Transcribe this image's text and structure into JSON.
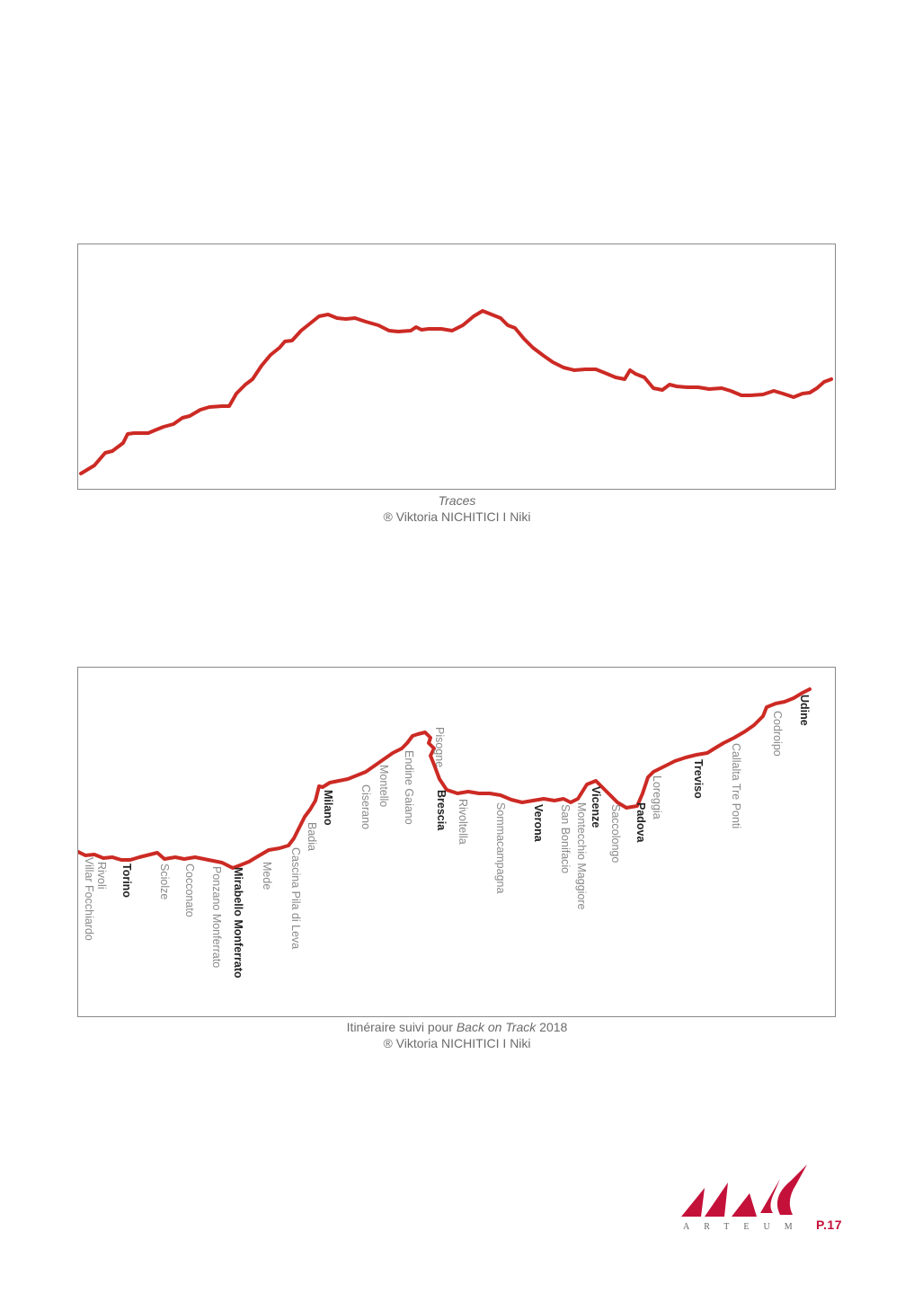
{
  "figure1": {
    "caption_title": "Traces",
    "caption_credit": "® Viktoria NICHITICI I Niki"
  },
  "figure2": {
    "caption_prefix": "Itinéraire suivi pour ",
    "caption_italic": "Back on Track",
    "caption_suffix": " 2018",
    "caption_credit": "® Viktoria NICHITICI I Niki",
    "towns": [
      {
        "name": "Villar Focchiardo",
        "major": false
      },
      {
        "name": "Rivoli",
        "major": false
      },
      {
        "name": "Torino",
        "major": true
      },
      {
        "name": "Sciolze",
        "major": false
      },
      {
        "name": "Cocconato",
        "major": false
      },
      {
        "name": "Ponzano Monferrato",
        "major": false
      },
      {
        "name": "Mirabello Monferrato",
        "major": true
      },
      {
        "name": "Mede",
        "major": false
      },
      {
        "name": "Cascina Pila di Leva",
        "major": false
      },
      {
        "name": "Badia",
        "major": false
      },
      {
        "name": "Milano",
        "major": true
      },
      {
        "name": "Ciserano",
        "major": false
      },
      {
        "name": "Montello",
        "major": false
      },
      {
        "name": "Endine Gaiano",
        "major": false
      },
      {
        "name": "Pisogne",
        "major": false
      },
      {
        "name": "Brescia",
        "major": true
      },
      {
        "name": "Rivoltella",
        "major": false
      },
      {
        "name": "Sommacampagna",
        "major": false
      },
      {
        "name": "Verona",
        "major": true
      },
      {
        "name": "San Bonifacio",
        "major": false
      },
      {
        "name": "Montecchio Maggiore",
        "major": false
      },
      {
        "name": "Vicenze",
        "major": true
      },
      {
        "name": "Saccolongo",
        "major": false
      },
      {
        "name": "Padova",
        "major": true
      },
      {
        "name": "Loreggia",
        "major": false
      },
      {
        "name": "Treviso",
        "major": true
      },
      {
        "name": "Callalta Tre Ponti",
        "major": false
      },
      {
        "name": "Codroipo",
        "major": false
      },
      {
        "name": "Udine",
        "major": true
      }
    ]
  },
  "logo": {
    "wordmark": "ARTEUM"
  },
  "page": {
    "number": "P.17"
  },
  "colors": {
    "route": "#cc2a24",
    "accent": "#c4113a"
  }
}
